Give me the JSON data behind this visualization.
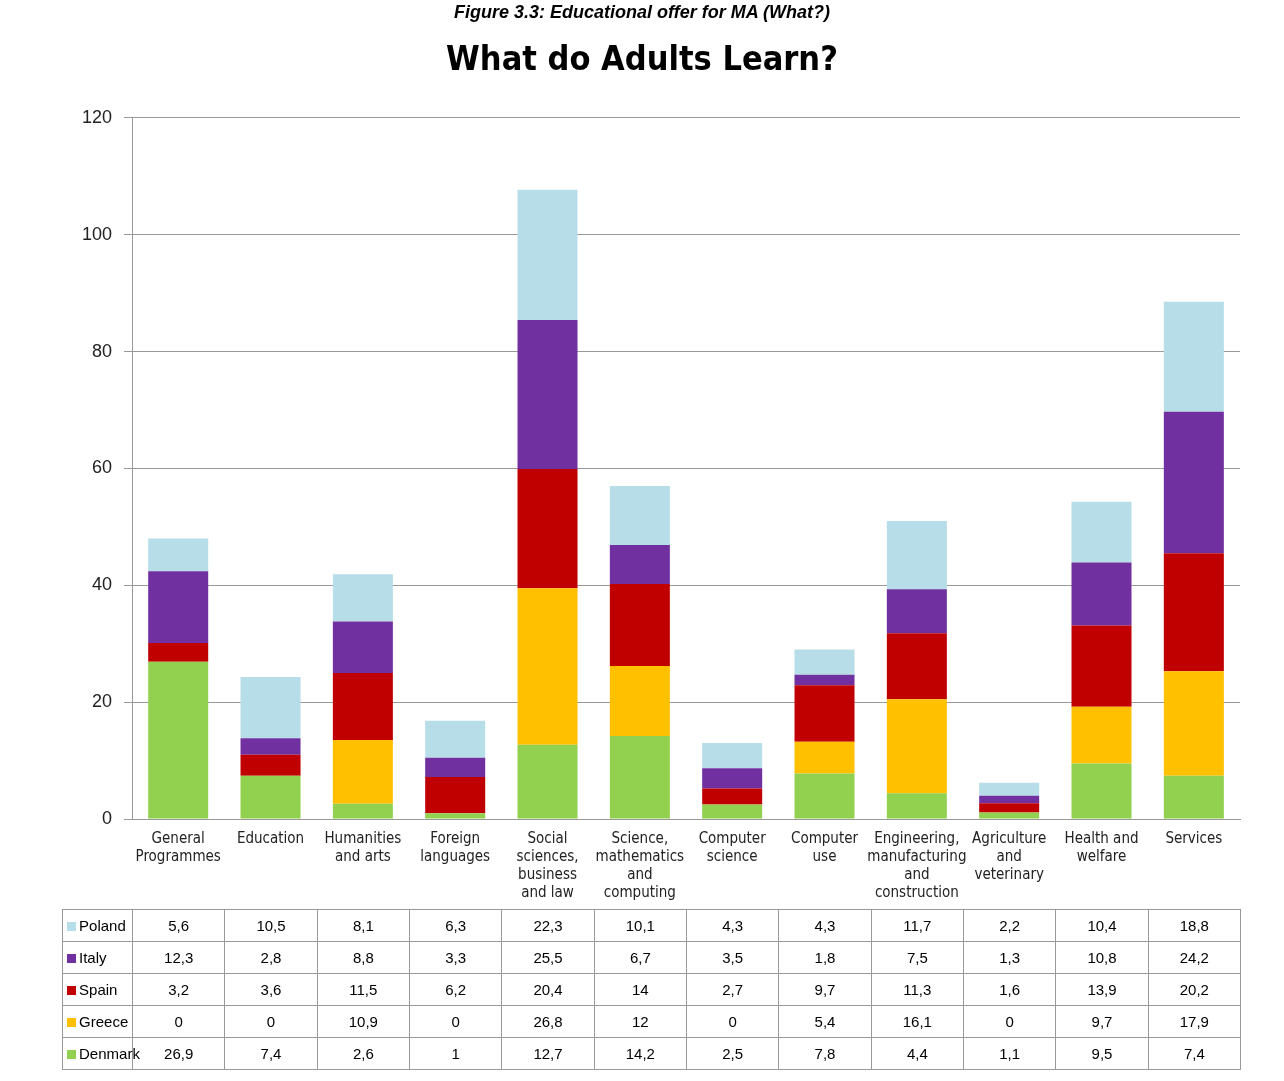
{
  "chart_data": {
    "type": "bar",
    "title": "What do Adults Learn?",
    "annotations": [
      "Figure 3.3: Educational offer for MA (What?)"
    ],
    "categories": [
      "General Programmes",
      "Education",
      "Humanities and arts",
      "Foreign languages",
      "Social sciences, business and law",
      "Science, mathematics and computing",
      "Computer science",
      "Computer use",
      "Engineering, manufacturing and construction",
      "Agriculture and veterinary",
      "Health and welfare",
      "Services"
    ],
    "stacked": true,
    "ylim": [
      0,
      120
    ],
    "yticks": [
      0,
      20,
      40,
      60,
      80,
      100,
      120
    ],
    "grid": "y",
    "legend": "bottom",
    "series": [
      {
        "name": "Denmark",
        "color": "#92d050",
        "values": [
          26.9,
          7.4,
          2.6,
          1,
          12.7,
          14.2,
          2.5,
          7.8,
          4.4,
          1.1,
          9.5,
          7.4
        ],
        "value_labels": [
          "26,9",
          "7,4",
          "2,6",
          "1",
          "12,7",
          "14,2",
          "2,5",
          "7,8",
          "4,4",
          "1,1",
          "9,5",
          "7,4"
        ]
      },
      {
        "name": "Greece",
        "color": "#ffc000",
        "values": [
          0,
          0,
          10.9,
          0,
          26.8,
          12,
          0,
          5.4,
          16.1,
          0,
          9.7,
          17.9
        ],
        "value_labels": [
          "0",
          "0",
          "10,9",
          "0",
          "26,8",
          "12",
          "0",
          "5,4",
          "16,1",
          "0",
          "9,7",
          "17,9"
        ]
      },
      {
        "name": "Spain",
        "color": "#c00000",
        "values": [
          3.2,
          3.6,
          11.5,
          6.2,
          20.4,
          14,
          2.7,
          9.7,
          11.3,
          1.6,
          13.9,
          20.2
        ],
        "value_labels": [
          "3,2",
          "3,6",
          "11,5",
          "6,2",
          "20,4",
          "14",
          "2,7",
          "9,7",
          "11,3",
          "1,6",
          "13,9",
          "20,2"
        ]
      },
      {
        "name": "Italy",
        "color": "#7030a0",
        "values": [
          12.3,
          2.8,
          8.8,
          3.3,
          25.5,
          6.7,
          3.5,
          1.8,
          7.5,
          1.3,
          10.8,
          24.2
        ],
        "value_labels": [
          "12,3",
          "2,8",
          "8,8",
          "3,3",
          "25,5",
          "6,7",
          "3,5",
          "1,8",
          "7,5",
          "1,3",
          "10,8",
          "24,2"
        ]
      },
      {
        "name": "Poland",
        "color": "#b7dde8",
        "values": [
          5.6,
          10.5,
          8.1,
          6.3,
          22.3,
          10.1,
          4.3,
          4.3,
          11.7,
          2.2,
          10.4,
          18.8
        ],
        "value_labels": [
          "5,6",
          "10,5",
          "8,1",
          "6,3",
          "22,3",
          "10,1",
          "4,3",
          "4,3",
          "11,7",
          "2,2",
          "10,4",
          "18,8"
        ]
      }
    ]
  }
}
